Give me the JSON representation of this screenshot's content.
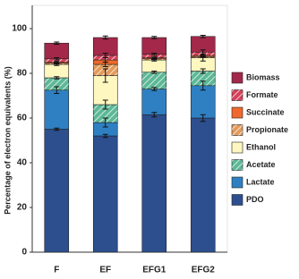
{
  "chart_data": {
    "type": "stacked-bar",
    "y_label": "Percentage of electron equivalents (%)",
    "categories": [
      "F",
      "EF",
      "EFG1",
      "EFG2"
    ],
    "ylim": [
      0,
      100
    ],
    "yticks": [
      0,
      20,
      40,
      60,
      80,
      100
    ],
    "series": [
      {
        "name": "PDO",
        "color": "#2d4f8e",
        "hatch": false,
        "values": [
          55,
          52,
          61.5,
          60
        ],
        "errors": [
          0.5,
          0.7,
          1,
          1.5
        ]
      },
      {
        "name": "Lactate",
        "color": "#2f80c2",
        "hatch": false,
        "values": [
          17.5,
          6,
          11.5,
          14.5
        ],
        "errors": [
          1.5,
          2,
          0.7,
          2
        ]
      },
      {
        "name": "Acetate",
        "color": "#5db897",
        "hatch": true,
        "values": [
          5.5,
          8,
          7.5,
          6.5
        ],
        "errors": [
          0.5,
          2,
          0.5,
          1
        ]
      },
      {
        "name": "Ethanol",
        "color": "#fff7c0",
        "hatch": false,
        "values": [
          6,
          13,
          5.5,
          6
        ],
        "errors": [
          0.5,
          3,
          0.5,
          1.5
        ]
      },
      {
        "name": "Propionate",
        "color": "#e39a5a",
        "hatch": true,
        "values": [
          0.5,
          5,
          0.5,
          0.5
        ],
        "errors": [
          0.3,
          1,
          0.3,
          0.3
        ]
      },
      {
        "name": "Succinate",
        "color": "#f0692c",
        "hatch": false,
        "values": [
          0.5,
          2,
          0.5,
          0.5
        ],
        "errors": [
          0.3,
          1,
          0.3,
          0.3
        ]
      },
      {
        "name": "Formate",
        "color": "#d6415a",
        "hatch": true,
        "values": [
          1.5,
          2,
          1.5,
          1.5
        ],
        "errors": [
          0.5,
          1,
          0.5,
          1
        ]
      },
      {
        "name": "Biomass",
        "color": "#a3284a",
        "hatch": false,
        "values": [
          7,
          8,
          7.5,
          7
        ],
        "errors": [
          0.5,
          0.7,
          0.5,
          0.5
        ]
      }
    ]
  }
}
